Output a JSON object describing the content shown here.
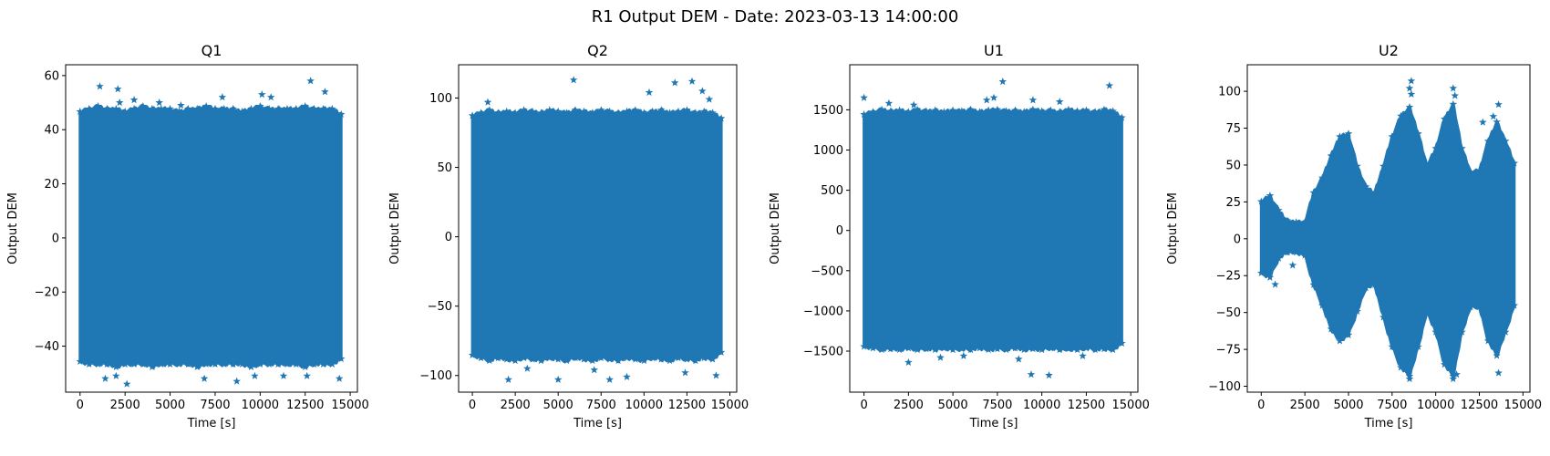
{
  "figure": {
    "title": "R1 Output DEM - Date: 2023-03-13 14:00:00"
  },
  "colors": {
    "series": "#1f77b4",
    "axes": "#000000",
    "background": "#ffffff"
  },
  "chart_data": [
    {
      "type": "scatter",
      "title": "Q1",
      "xlabel": "Time [s]",
      "ylabel": "Output DEM",
      "xlim": [
        -800,
        15400
      ],
      "ylim": [
        -57,
        64
      ],
      "xticks": [
        0,
        2500,
        5000,
        7500,
        10000,
        12500,
        15000
      ],
      "yticks": [
        -40,
        -20,
        0,
        20,
        40,
        60
      ],
      "marker": "star",
      "series": [
        {
          "x": [
            0,
            500,
            1000,
            1500,
            2000,
            2500,
            3000,
            3500,
            4000,
            4500,
            5000,
            5500,
            6000,
            6500,
            7000,
            7500,
            8000,
            8500,
            9000,
            9500,
            10000,
            10500,
            11000,
            11500,
            12000,
            12500,
            13000,
            13500,
            14000,
            14500
          ],
          "upper": [
            46,
            47,
            48,
            47,
            47,
            46,
            47,
            48,
            47,
            47,
            47,
            46,
            47,
            47,
            48,
            47,
            47,
            47,
            46,
            47,
            48,
            47,
            47,
            47,
            47,
            48,
            47,
            47,
            47,
            45
          ],
          "lower": [
            -45,
            -46,
            -46,
            -46,
            -47,
            -46,
            -46,
            -46,
            -47,
            -46,
            -46,
            -46,
            -46,
            -47,
            -46,
            -46,
            -46,
            -46,
            -46,
            -47,
            -46,
            -46,
            -46,
            -46,
            -46,
            -47,
            -46,
            -46,
            -46,
            -44
          ],
          "outliers": [
            [
              1100,
              56
            ],
            [
              2100,
              55
            ],
            [
              2200,
              50
            ],
            [
              3000,
              51
            ],
            [
              7900,
              52
            ],
            [
              10100,
              53
            ],
            [
              10600,
              52
            ],
            [
              12800,
              58
            ],
            [
              13600,
              54
            ],
            [
              4400,
              50
            ],
            [
              5600,
              49
            ],
            [
              8700,
              -53
            ],
            [
              2600,
              -54
            ],
            [
              2000,
              -51
            ],
            [
              1400,
              -52
            ],
            [
              6900,
              -52
            ],
            [
              11300,
              -51
            ],
            [
              14400,
              -52
            ],
            [
              9700,
              -51
            ],
            [
              12600,
              -51
            ]
          ]
        }
      ]
    },
    {
      "type": "scatter",
      "title": "Q2",
      "xlabel": "Time [s]",
      "ylabel": "Output DEM",
      "xlim": [
        -800,
        15400
      ],
      "ylim": [
        -112,
        124
      ],
      "xticks": [
        0,
        2500,
        5000,
        7500,
        10000,
        12500,
        15000
      ],
      "yticks": [
        -100,
        -50,
        0,
        50,
        100
      ],
      "marker": "star",
      "series": [
        {
          "x": [
            0,
            500,
            1000,
            1500,
            2000,
            2500,
            3000,
            3500,
            4000,
            4500,
            5000,
            5500,
            6000,
            6500,
            7000,
            7500,
            8000,
            8500,
            9000,
            9500,
            10000,
            10500,
            11000,
            11500,
            12000,
            12500,
            13000,
            13500,
            14000,
            14500
          ],
          "upper": [
            86,
            88,
            90,
            88,
            89,
            88,
            90,
            89,
            88,
            90,
            89,
            88,
            90,
            89,
            88,
            90,
            89,
            88,
            89,
            90,
            88,
            89,
            90,
            88,
            89,
            90,
            88,
            89,
            88,
            84
          ],
          "lower": [
            -84,
            -86,
            -88,
            -86,
            -87,
            -88,
            -86,
            -87,
            -88,
            -86,
            -87,
            -88,
            -86,
            -87,
            -88,
            -86,
            -87,
            -88,
            -86,
            -87,
            -88,
            -86,
            -87,
            -88,
            -86,
            -87,
            -88,
            -86,
            -87,
            -82
          ],
          "outliers": [
            [
              5900,
              113
            ],
            [
              10300,
              104
            ],
            [
              11800,
              111
            ],
            [
              12800,
              112
            ],
            [
              13400,
              105
            ],
            [
              13800,
              99
            ],
            [
              900,
              97
            ],
            [
              2100,
              -103
            ],
            [
              5000,
              -103
            ],
            [
              8000,
              -103
            ],
            [
              9000,
              -101
            ],
            [
              12400,
              -98
            ],
            [
              14200,
              -100
            ],
            [
              3200,
              -95
            ],
            [
              7100,
              -96
            ]
          ]
        }
      ]
    },
    {
      "type": "scatter",
      "title": "U1",
      "xlabel": "Time [s]",
      "ylabel": "Output DEM",
      "xlim": [
        -800,
        15400
      ],
      "ylim": [
        -2010,
        2060
      ],
      "xticks": [
        0,
        2500,
        5000,
        7500,
        10000,
        12500,
        15000
      ],
      "yticks": [
        -1500,
        -1000,
        -500,
        0,
        500,
        1000,
        1500
      ],
      "marker": "star",
      "series": [
        {
          "x": [
            0,
            500,
            1000,
            1500,
            2000,
            2500,
            3000,
            3500,
            4000,
            4500,
            5000,
            5500,
            6000,
            6500,
            7000,
            7500,
            8000,
            8500,
            9000,
            9500,
            10000,
            10500,
            11000,
            11500,
            12000,
            12500,
            13000,
            13500,
            14000,
            14500
          ],
          "upper": [
            1420,
            1450,
            1480,
            1460,
            1470,
            1450,
            1480,
            1460,
            1470,
            1450,
            1470,
            1460,
            1480,
            1450,
            1470,
            1480,
            1460,
            1470,
            1450,
            1480,
            1460,
            1470,
            1450,
            1480,
            1460,
            1470,
            1450,
            1480,
            1460,
            1380
          ],
          "lower": [
            -1420,
            -1440,
            -1460,
            -1450,
            -1460,
            -1440,
            -1460,
            -1450,
            -1460,
            -1440,
            -1460,
            -1450,
            -1460,
            -1440,
            -1460,
            -1450,
            -1460,
            -1440,
            -1460,
            -1450,
            -1460,
            -1440,
            -1460,
            -1450,
            -1460,
            -1440,
            -1460,
            -1450,
            -1460,
            -1380
          ],
          "outliers": [
            [
              7800,
              1850
            ],
            [
              7300,
              1650
            ],
            [
              6900,
              1620
            ],
            [
              9500,
              1620
            ],
            [
              11000,
              1600
            ],
            [
              13800,
              1800
            ],
            [
              0,
              1650
            ],
            [
              1400,
              1580
            ],
            [
              2800,
              1560
            ],
            [
              8700,
              -1600
            ],
            [
              9400,
              -1790
            ],
            [
              10400,
              -1800
            ],
            [
              2500,
              -1640
            ],
            [
              5600,
              -1560
            ],
            [
              12300,
              -1560
            ],
            [
              4300,
              -1580
            ]
          ]
        }
      ]
    },
    {
      "type": "scatter",
      "title": "U2",
      "xlabel": "Time [s]",
      "ylabel": "Output DEM",
      "xlim": [
        -800,
        15400
      ],
      "ylim": [
        -104,
        118
      ],
      "xticks": [
        0,
        2500,
        5000,
        7500,
        10000,
        12500,
        15000
      ],
      "yticks": [
        -100,
        -75,
        -50,
        -25,
        0,
        25,
        50,
        75,
        100
      ],
      "marker": "star",
      "series": [
        {
          "x": [
            0,
            500,
            1000,
            1500,
            2000,
            2500,
            3000,
            3500,
            4000,
            4500,
            5000,
            5500,
            6000,
            6500,
            7000,
            7500,
            8000,
            8500,
            9000,
            9500,
            10000,
            10500,
            11000,
            11500,
            12000,
            12500,
            13000,
            13500,
            14000,
            14500
          ],
          "upper": [
            24,
            28,
            18,
            11,
            10,
            10,
            30,
            40,
            55,
            68,
            70,
            48,
            34,
            30,
            48,
            68,
            82,
            88,
            70,
            48,
            60,
            80,
            90,
            60,
            44,
            45,
            65,
            78,
            65,
            50
          ],
          "lower": [
            -22,
            -25,
            -12,
            -8,
            -8,
            -10,
            -30,
            -44,
            -60,
            -68,
            -64,
            -48,
            -32,
            -30,
            -52,
            -72,
            -86,
            -92,
            -72,
            -48,
            -62,
            -84,
            -92,
            -62,
            -45,
            -45,
            -68,
            -78,
            -62,
            -44
          ],
          "outliers": [
            [
              8600,
              107
            ],
            [
              8500,
              102
            ],
            [
              8600,
              98
            ],
            [
              11000,
              102
            ],
            [
              11100,
              97
            ],
            [
              12700,
              79
            ],
            [
              13300,
              83
            ],
            [
              13600,
              91
            ],
            [
              800,
              -31
            ],
            [
              1800,
              -18
            ],
            [
              11000,
              -95
            ],
            [
              11200,
              -92
            ],
            [
              13600,
              -91
            ],
            [
              8500,
              -95
            ]
          ]
        }
      ]
    }
  ]
}
